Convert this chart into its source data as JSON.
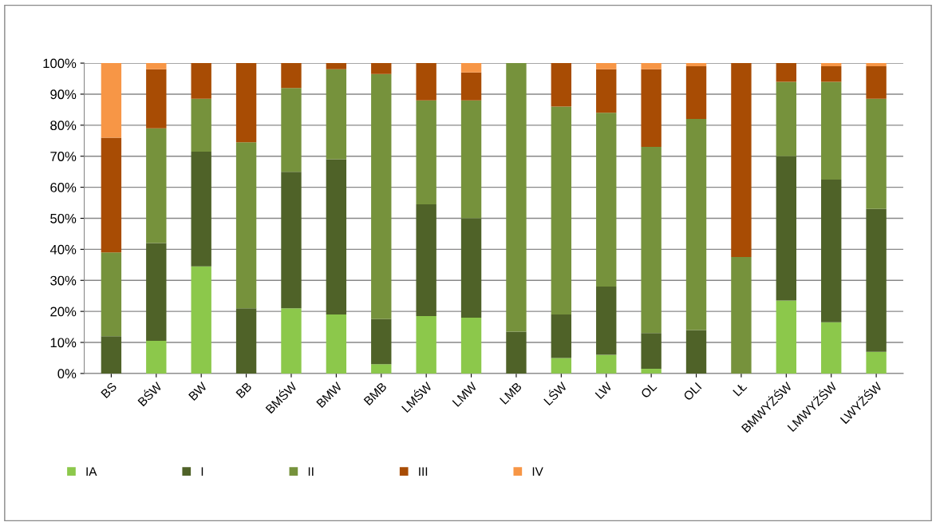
{
  "chart_data": {
    "type": "bar",
    "stacked": true,
    "categories": [
      "BS",
      "BŚW",
      "BW",
      "BB",
      "BMŚW",
      "BMW",
      "BMB",
      "LMŚW",
      "LMW",
      "LMB",
      "LŚW",
      "LW",
      "OL",
      "OLI",
      "LŁ",
      "BMWYŻŚW",
      "LMWYŻŚW",
      "LWYŻŚW"
    ],
    "series": [
      {
        "name": "IA",
        "color": "#8cc84b",
        "values": [
          0,
          10.5,
          34.5,
          0,
          21,
          19,
          3,
          18.5,
          18,
          0,
          5,
          6,
          1.5,
          0,
          0,
          23.5,
          16.5,
          7
        ]
      },
      {
        "name": "I",
        "color": "#4f6228",
        "values": [
          12,
          31.5,
          37,
          21,
          44,
          50,
          14.5,
          36,
          32,
          13.5,
          14,
          22,
          11.5,
          14,
          0,
          46.5,
          46,
          46
        ]
      },
      {
        "name": "II",
        "color": "#76923c",
        "values": [
          27,
          37,
          17,
          53.5,
          27,
          29,
          79,
          33.5,
          38,
          86.5,
          67,
          56,
          60,
          68,
          37.5,
          24,
          31.5,
          35.5
        ]
      },
      {
        "name": "III",
        "color": "#a84c04",
        "values": [
          37,
          19,
          11.5,
          25.5,
          8,
          2,
          3.5,
          12,
          9,
          0,
          14,
          14,
          25,
          17,
          62.5,
          6,
          5,
          10.5
        ]
      },
      {
        "name": "IV",
        "color": "#f79646",
        "values": [
          24,
          2,
          0,
          0,
          0,
          0,
          0,
          0,
          3,
          0,
          0,
          2,
          2,
          1,
          0,
          0,
          1,
          1
        ]
      }
    ],
    "ylim": [
      0,
      100
    ],
    "yticks": [
      {
        "value": 0,
        "label": "0%"
      },
      {
        "value": 10,
        "label": "10%"
      },
      {
        "value": 20,
        "label": "20%"
      },
      {
        "value": 30,
        "label": "30%"
      },
      {
        "value": 40,
        "label": "40%"
      },
      {
        "value": 50,
        "label": "50%"
      },
      {
        "value": 60,
        "label": "60%"
      },
      {
        "value": 70,
        "label": "70%"
      },
      {
        "value": 80,
        "label": "80%"
      },
      {
        "value": 90,
        "label": "90%"
      },
      {
        "value": 100,
        "label": "100%"
      }
    ],
    "grid": "y",
    "legend": "bottom"
  }
}
